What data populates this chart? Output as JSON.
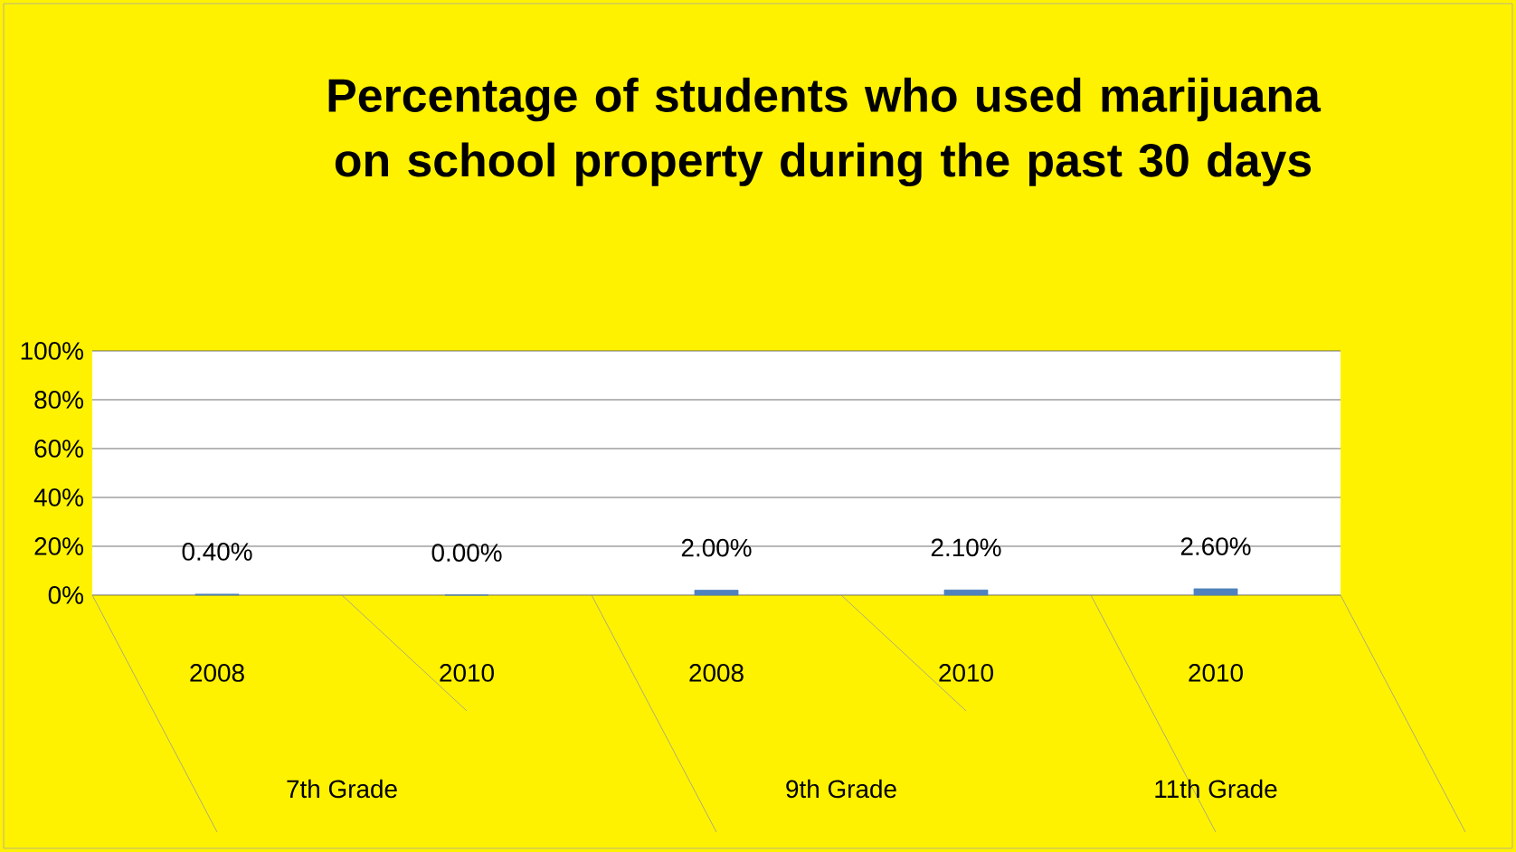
{
  "chart_data": {
    "type": "bar",
    "title": "Percentage of students who used marijuana on school property during the past 30 days",
    "categories": [
      "2008",
      "2010",
      "2008",
      "2010",
      "2010"
    ],
    "annotations": [
      "7th Grade",
      "9th Grade",
      "11th Grade"
    ],
    "values": [
      0.4,
      0.0,
      2.0,
      2.1,
      2.6
    ],
    "value_labels": [
      "0.40%",
      "0.00%",
      "2.00%",
      "2.10%",
      "2.60%"
    ],
    "color": "#4f81bd",
    "ylim": [
      0,
      100
    ],
    "yticks": [
      {
        "value": 0,
        "label": "0%"
      },
      {
        "value": 20,
        "label": "20%"
      },
      {
        "value": 40,
        "label": "40%"
      },
      {
        "value": 60,
        "label": "60%"
      },
      {
        "value": 80,
        "label": "80%"
      },
      {
        "value": 100,
        "label": "100%"
      }
    ],
    "grid": "y"
  }
}
